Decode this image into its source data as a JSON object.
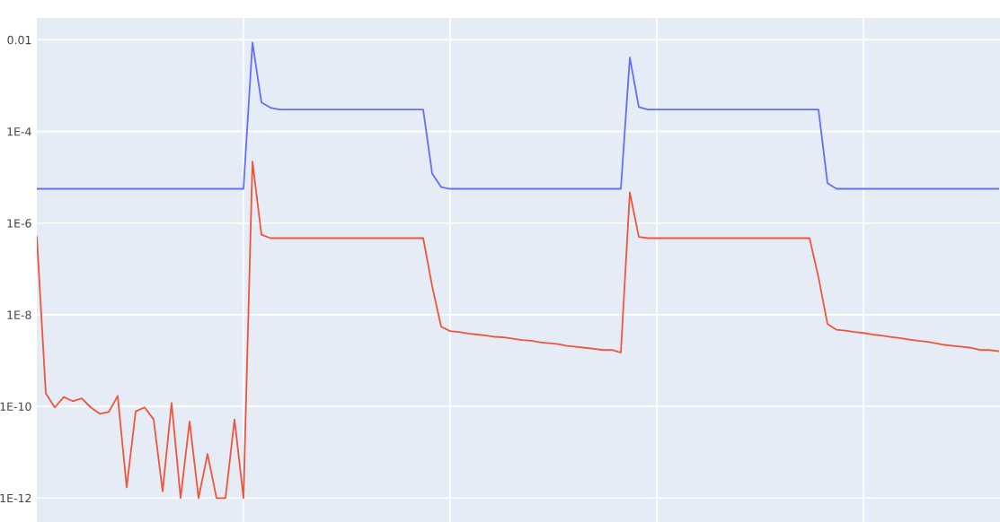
{
  "chart_data": {
    "type": "line",
    "categories": [
      null,
      null,
      null,
      null,
      null,
      null,
      null,
      null,
      null,
      null,
      null,
      null,
      null,
      null,
      null,
      null,
      null,
      null,
      null,
      null,
      null,
      null,
      null,
      null,
      null,
      null,
      null,
      null,
      null,
      null,
      null,
      null,
      null,
      null,
      null,
      null,
      null,
      null,
      null,
      null,
      null,
      null,
      null,
      null,
      null,
      null,
      null,
      null,
      null,
      null,
      null,
      null,
      null,
      null,
      null,
      null,
      null,
      null,
      null,
      null,
      null,
      null,
      null,
      null,
      null,
      null,
      null,
      null,
      null,
      null,
      null,
      null,
      null,
      null,
      null,
      null,
      null,
      null,
      null,
      null,
      null,
      null,
      null,
      null,
      null,
      null,
      null,
      null,
      null,
      null,
      null,
      null,
      null,
      null,
      null,
      null,
      null,
      null,
      null,
      null,
      null,
      null,
      null,
      null,
      null,
      null,
      null,
      null
    ],
    "series": [
      {
        "color": "#636efa",
        "values": [
          5.6e-06,
          5.6e-06,
          5.6e-06,
          5.6e-06,
          5.6e-06,
          5.6e-06,
          5.6e-06,
          5.6e-06,
          5.6e-06,
          5.6e-06,
          5.6e-06,
          5.6e-06,
          5.6e-06,
          5.6e-06,
          5.6e-06,
          5.6e-06,
          5.6e-06,
          5.6e-06,
          5.6e-06,
          5.6e-06,
          5.6e-06,
          5.6e-06,
          5.6e-06,
          5.6e-06,
          0.0087,
          0.00043,
          0.00033,
          0.0003,
          0.0003,
          0.0003,
          0.0003,
          0.0003,
          0.0003,
          0.0003,
          0.0003,
          0.0003,
          0.0003,
          0.0003,
          0.0003,
          0.0003,
          0.0003,
          0.0003,
          0.0003,
          0.0003,
          1.2e-05,
          6.1e-06,
          5.6e-06,
          5.6e-06,
          5.6e-06,
          5.6e-06,
          5.6e-06,
          5.6e-06,
          5.6e-06,
          5.6e-06,
          5.6e-06,
          5.6e-06,
          5.6e-06,
          5.6e-06,
          5.6e-06,
          5.6e-06,
          5.6e-06,
          5.6e-06,
          5.6e-06,
          5.6e-06,
          5.6e-06,
          5.6e-06,
          0.0041,
          0.00034,
          0.0003,
          0.0003,
          0.0003,
          0.0003,
          0.0003,
          0.0003,
          0.0003,
          0.0003,
          0.0003,
          0.0003,
          0.0003,
          0.0003,
          0.0003,
          0.0003,
          0.0003,
          0.0003,
          0.0003,
          0.0003,
          0.0003,
          0.0003,
          7.4e-06,
          5.6e-06,
          5.6e-06,
          5.6e-06,
          5.6e-06,
          5.6e-06,
          5.6e-06,
          5.6e-06,
          5.6e-06,
          5.6e-06,
          5.6e-06,
          5.6e-06,
          5.6e-06,
          5.6e-06,
          5.6e-06,
          5.6e-06,
          5.6e-06,
          5.6e-06,
          5.6e-06,
          5.6e-06
        ]
      },
      {
        "color": "#ef553b",
        "values": [
          5e-07,
          1.9e-10,
          9.5e-11,
          1.6e-10,
          1.3e-10,
          1.5e-10,
          9.5e-11,
          6.9e-11,
          7.5e-11,
          1.7e-10,
          1.7e-12,
          7.8e-11,
          9.5e-11,
          5.2e-11,
          1.4e-12,
          1.2e-10,
          1e-12,
          4.7e-11,
          1e-12,
          9.1e-12,
          1e-12,
          1e-12,
          5.2e-11,
          1e-12,
          2.2e-05,
          5.6e-07,
          4.7e-07,
          4.7e-07,
          4.7e-07,
          4.7e-07,
          4.7e-07,
          4.7e-07,
          4.7e-07,
          4.7e-07,
          4.7e-07,
          4.7e-07,
          4.7e-07,
          4.7e-07,
          4.7e-07,
          4.7e-07,
          4.7e-07,
          4.7e-07,
          4.7e-07,
          4.7e-07,
          4.2e-08,
          5.5e-09,
          4.4e-09,
          4.2e-09,
          3.9e-09,
          3.7e-09,
          3.5e-09,
          3.3e-09,
          3.2e-09,
          3e-09,
          2.8e-09,
          2.7e-09,
          2.5e-09,
          2.4e-09,
          2.3e-09,
          2.1e-09,
          2e-09,
          1.9e-09,
          1.8e-09,
          1.7e-09,
          1.7e-09,
          1.5e-09,
          4.7e-06,
          5e-07,
          4.7e-07,
          4.7e-07,
          4.7e-07,
          4.7e-07,
          4.7e-07,
          4.7e-07,
          4.7e-07,
          4.7e-07,
          4.7e-07,
          4.7e-07,
          4.7e-07,
          4.7e-07,
          4.7e-07,
          4.7e-07,
          4.7e-07,
          4.7e-07,
          4.7e-07,
          4.7e-07,
          4.7e-07,
          6.5e-08,
          6.3e-09,
          4.7e-09,
          4.5e-09,
          4.2e-09,
          4e-09,
          3.7e-09,
          3.5e-09,
          3.3e-09,
          3.1e-09,
          2.9e-09,
          2.7e-09,
          2.6e-09,
          2.4e-09,
          2.2e-09,
          2.1e-09,
          2e-09,
          1.9e-09,
          1.7e-09,
          1.7e-09,
          1.6e-09
        ]
      }
    ],
    "log": "y",
    "ylim": [
      3e-13,
      0.03
    ],
    "yticks": [
      0.01,
      {
        "value": 0.0001,
        "label": "1E-4"
      },
      {
        "value": 1e-06,
        "label": "1E-6"
      },
      {
        "value": 1e-08,
        "label": "1E-8"
      },
      {
        "value": 1e-10,
        "label": "1E-10"
      },
      {
        "value": 1e-12,
        "label": "1E-12"
      }
    ],
    "tick_labels": "y",
    "grid": true,
    "marker": "none",
    "line_style": "solid"
  }
}
